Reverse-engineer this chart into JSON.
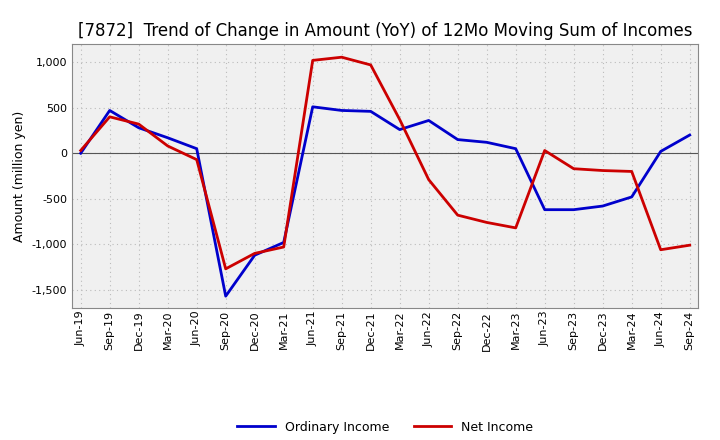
{
  "title": "[7872]  Trend of Change in Amount (YoY) of 12Mo Moving Sum of Incomes",
  "ylabel": "Amount (million yen)",
  "labels": [
    "Jun-19",
    "Sep-19",
    "Dec-19",
    "Mar-20",
    "Jun-20",
    "Sep-20",
    "Dec-20",
    "Mar-21",
    "Jun-21",
    "Sep-21",
    "Dec-21",
    "Mar-22",
    "Jun-22",
    "Sep-22",
    "Dec-22",
    "Mar-23",
    "Jun-23",
    "Sep-23",
    "Dec-23",
    "Mar-24",
    "Jun-24",
    "Sep-24"
  ],
  "ordinary_income": [
    0,
    470,
    280,
    170,
    50,
    -1570,
    -1120,
    -980,
    510,
    470,
    460,
    260,
    360,
    150,
    120,
    50,
    -620,
    -620,
    -580,
    -480,
    20,
    200
  ],
  "net_income": [
    30,
    400,
    320,
    80,
    -70,
    -1270,
    -1100,
    -1030,
    1020,
    1055,
    970,
    370,
    -290,
    -680,
    -760,
    -820,
    30,
    -170,
    -190,
    -200,
    -1060,
    -1010
  ],
  "ordinary_color": "#0000cc",
  "net_color": "#cc0000",
  "ylim": [
    -1700,
    1200
  ],
  "yticks": [
    -1500,
    -1000,
    -500,
    0,
    500,
    1000
  ],
  "background_color": "#ffffff",
  "plot_bg_color": "#f0f0f0",
  "grid_color": "#bbbbbb",
  "title_fontsize": 12,
  "axis_label_fontsize": 9,
  "tick_fontsize": 8,
  "legend_fontsize": 9,
  "line_width": 2.0
}
